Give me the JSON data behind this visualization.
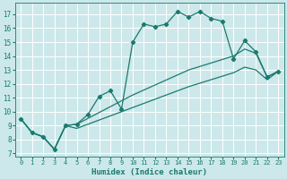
{
  "xlabel": "Humidex (Indice chaleur)",
  "bg_color": "#cce8ea",
  "grid_color": "#ffffff",
  "line_color": "#1a7a6e",
  "xlim": [
    -0.5,
    23.5
  ],
  "ylim": [
    6.8,
    17.8
  ],
  "xticks": [
    0,
    1,
    2,
    3,
    4,
    5,
    6,
    7,
    8,
    9,
    10,
    11,
    12,
    13,
    14,
    15,
    16,
    17,
    18,
    19,
    20,
    21,
    22,
    23
  ],
  "yticks": [
    7,
    8,
    9,
    10,
    11,
    12,
    13,
    14,
    15,
    16,
    17
  ],
  "line1_x": [
    0,
    1,
    2,
    3,
    4,
    5,
    6,
    7,
    8,
    9,
    10,
    11,
    12,
    13,
    14,
    15,
    16,
    17,
    18,
    19,
    20,
    21,
    22,
    23
  ],
  "line1_y": [
    9.5,
    8.5,
    8.2,
    7.3,
    9.0,
    9.1,
    9.8,
    11.1,
    11.5,
    10.2,
    15.0,
    16.3,
    16.1,
    16.3,
    17.2,
    16.8,
    17.2,
    16.7,
    16.5,
    13.8,
    15.1,
    14.3,
    12.5,
    12.9
  ],
  "line2_x": [
    0,
    1,
    2,
    3,
    4,
    5,
    10,
    15,
    19,
    20,
    21,
    22,
    23
  ],
  "line2_y": [
    9.5,
    8.5,
    8.2,
    7.3,
    9.0,
    9.1,
    11.2,
    13.0,
    14.0,
    14.5,
    14.2,
    12.5,
    12.9
  ],
  "line3_x": [
    0,
    1,
    2,
    3,
    4,
    5,
    10,
    15,
    19,
    20,
    21,
    22,
    23
  ],
  "line3_y": [
    9.5,
    8.5,
    8.2,
    7.3,
    9.0,
    8.8,
    10.3,
    11.8,
    12.8,
    13.2,
    13.0,
    12.3,
    12.9
  ]
}
